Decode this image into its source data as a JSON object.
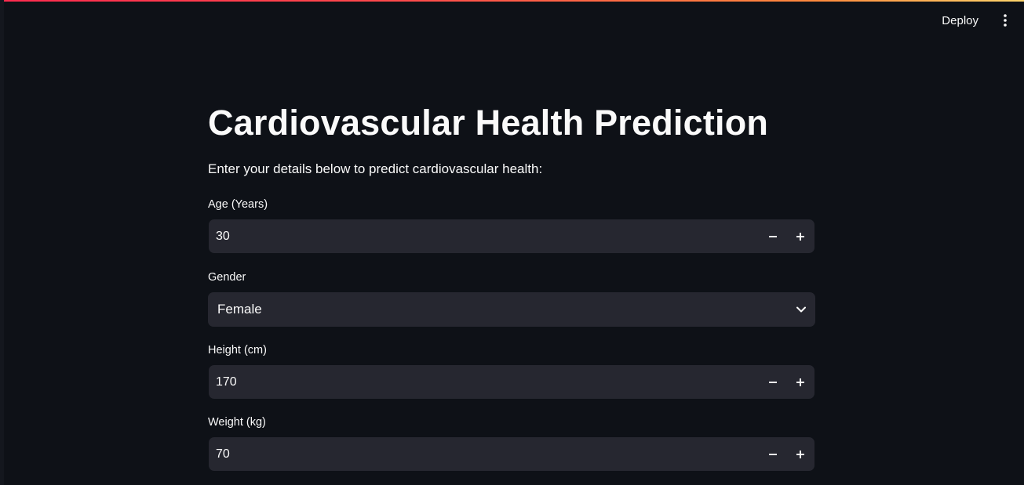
{
  "header": {
    "deploy_label": "Deploy"
  },
  "main": {
    "title": "Cardiovascular Health Prediction",
    "subtitle": "Enter your details below to predict cardiovascular health:"
  },
  "fields": {
    "age": {
      "label": "Age (Years)",
      "value": "30"
    },
    "gender": {
      "label": "Gender",
      "value": "Female"
    },
    "height": {
      "label": "Height (cm)",
      "value": "170"
    },
    "weight": {
      "label": "Weight (kg)",
      "value": "70"
    }
  },
  "icons": {
    "menu": "vertical-dots-icon",
    "minus": "minus-icon",
    "plus": "plus-icon",
    "dropdown": "chevron-down-icon"
  },
  "colors": {
    "background": "#0e1117",
    "input_bg": "#262730",
    "text": "#fafafa",
    "accent_gradient_start": "#ff2b4f",
    "accent_gradient_end": "#ffd56b"
  }
}
